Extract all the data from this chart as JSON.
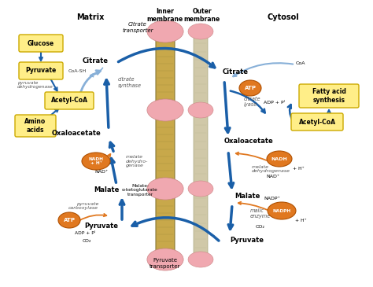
{
  "background_color": "#ffffff",
  "membrane_inner_color": "#c8a84a",
  "membrane_outer_color": "#d8d0b0",
  "membrane_pink": "#f0a8b0",
  "arrow_color": "#1a5fa8",
  "light_arrow_color": "#88b0d8",
  "yellow_box_color": "#ffee88",
  "yellow_box_edge": "#ccaa00",
  "orange_circle_color": "#e07820",
  "label_matrix": "Matrix",
  "label_inner": "Inner\nmembrane",
  "label_outer": "Outer\nmembrane",
  "label_cytosol": "Cytosol"
}
